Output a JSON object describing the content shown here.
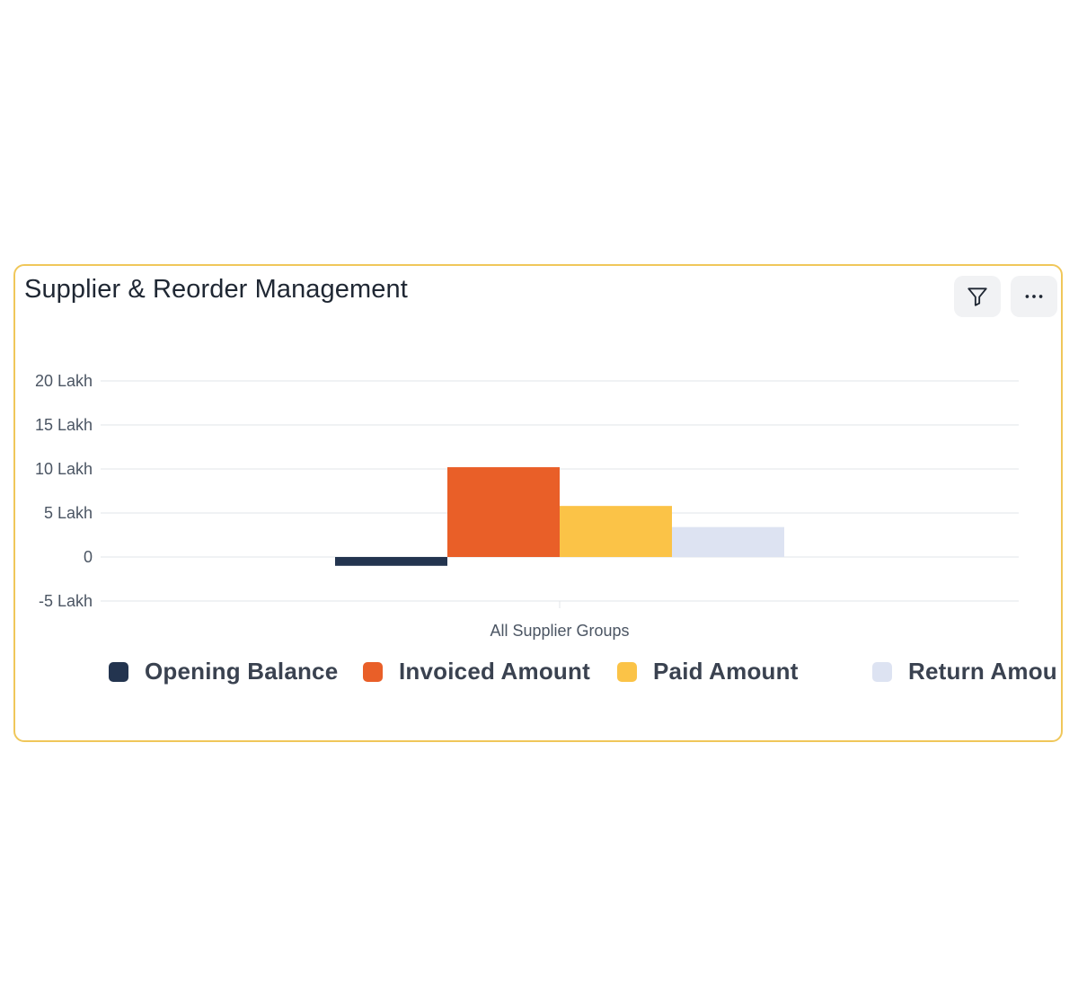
{
  "card": {
    "title": "Supplier & Reorder Management"
  },
  "toolbar": {
    "filter_icon": "filter-funnel-icon",
    "more_icon": "more-horizontal-icon"
  },
  "colors": {
    "card_border": "#f0c75a",
    "opening_balance": "#23344f",
    "invoiced_amount": "#e95f28",
    "paid_amount": "#fbc347",
    "return_amount": "#dde3f2"
  },
  "chart_data": {
    "type": "bar",
    "categories": [
      "All Supplier Groups"
    ],
    "ylim": [
      -5,
      20
    ],
    "yticks": [
      20,
      15,
      10,
      5,
      0,
      -5
    ],
    "ytick_labels": [
      "20 Lakh",
      "15 Lakh",
      "10 Lakh",
      "5 Lakh",
      "0",
      "-5 Lakh"
    ],
    "series": [
      {
        "name": "Opening Balance",
        "values": [
          -1.0
        ],
        "color": "#23344f"
      },
      {
        "name": "Invoiced Amount",
        "values": [
          10.2
        ],
        "color": "#e95f28"
      },
      {
        "name": "Paid Amount",
        "values": [
          5.8
        ],
        "color": "#fbc347"
      },
      {
        "name": "Return Amou",
        "values": [
          3.4
        ],
        "color": "#dde3f2"
      }
    ],
    "grid": true,
    "legend_position": "bottom"
  }
}
